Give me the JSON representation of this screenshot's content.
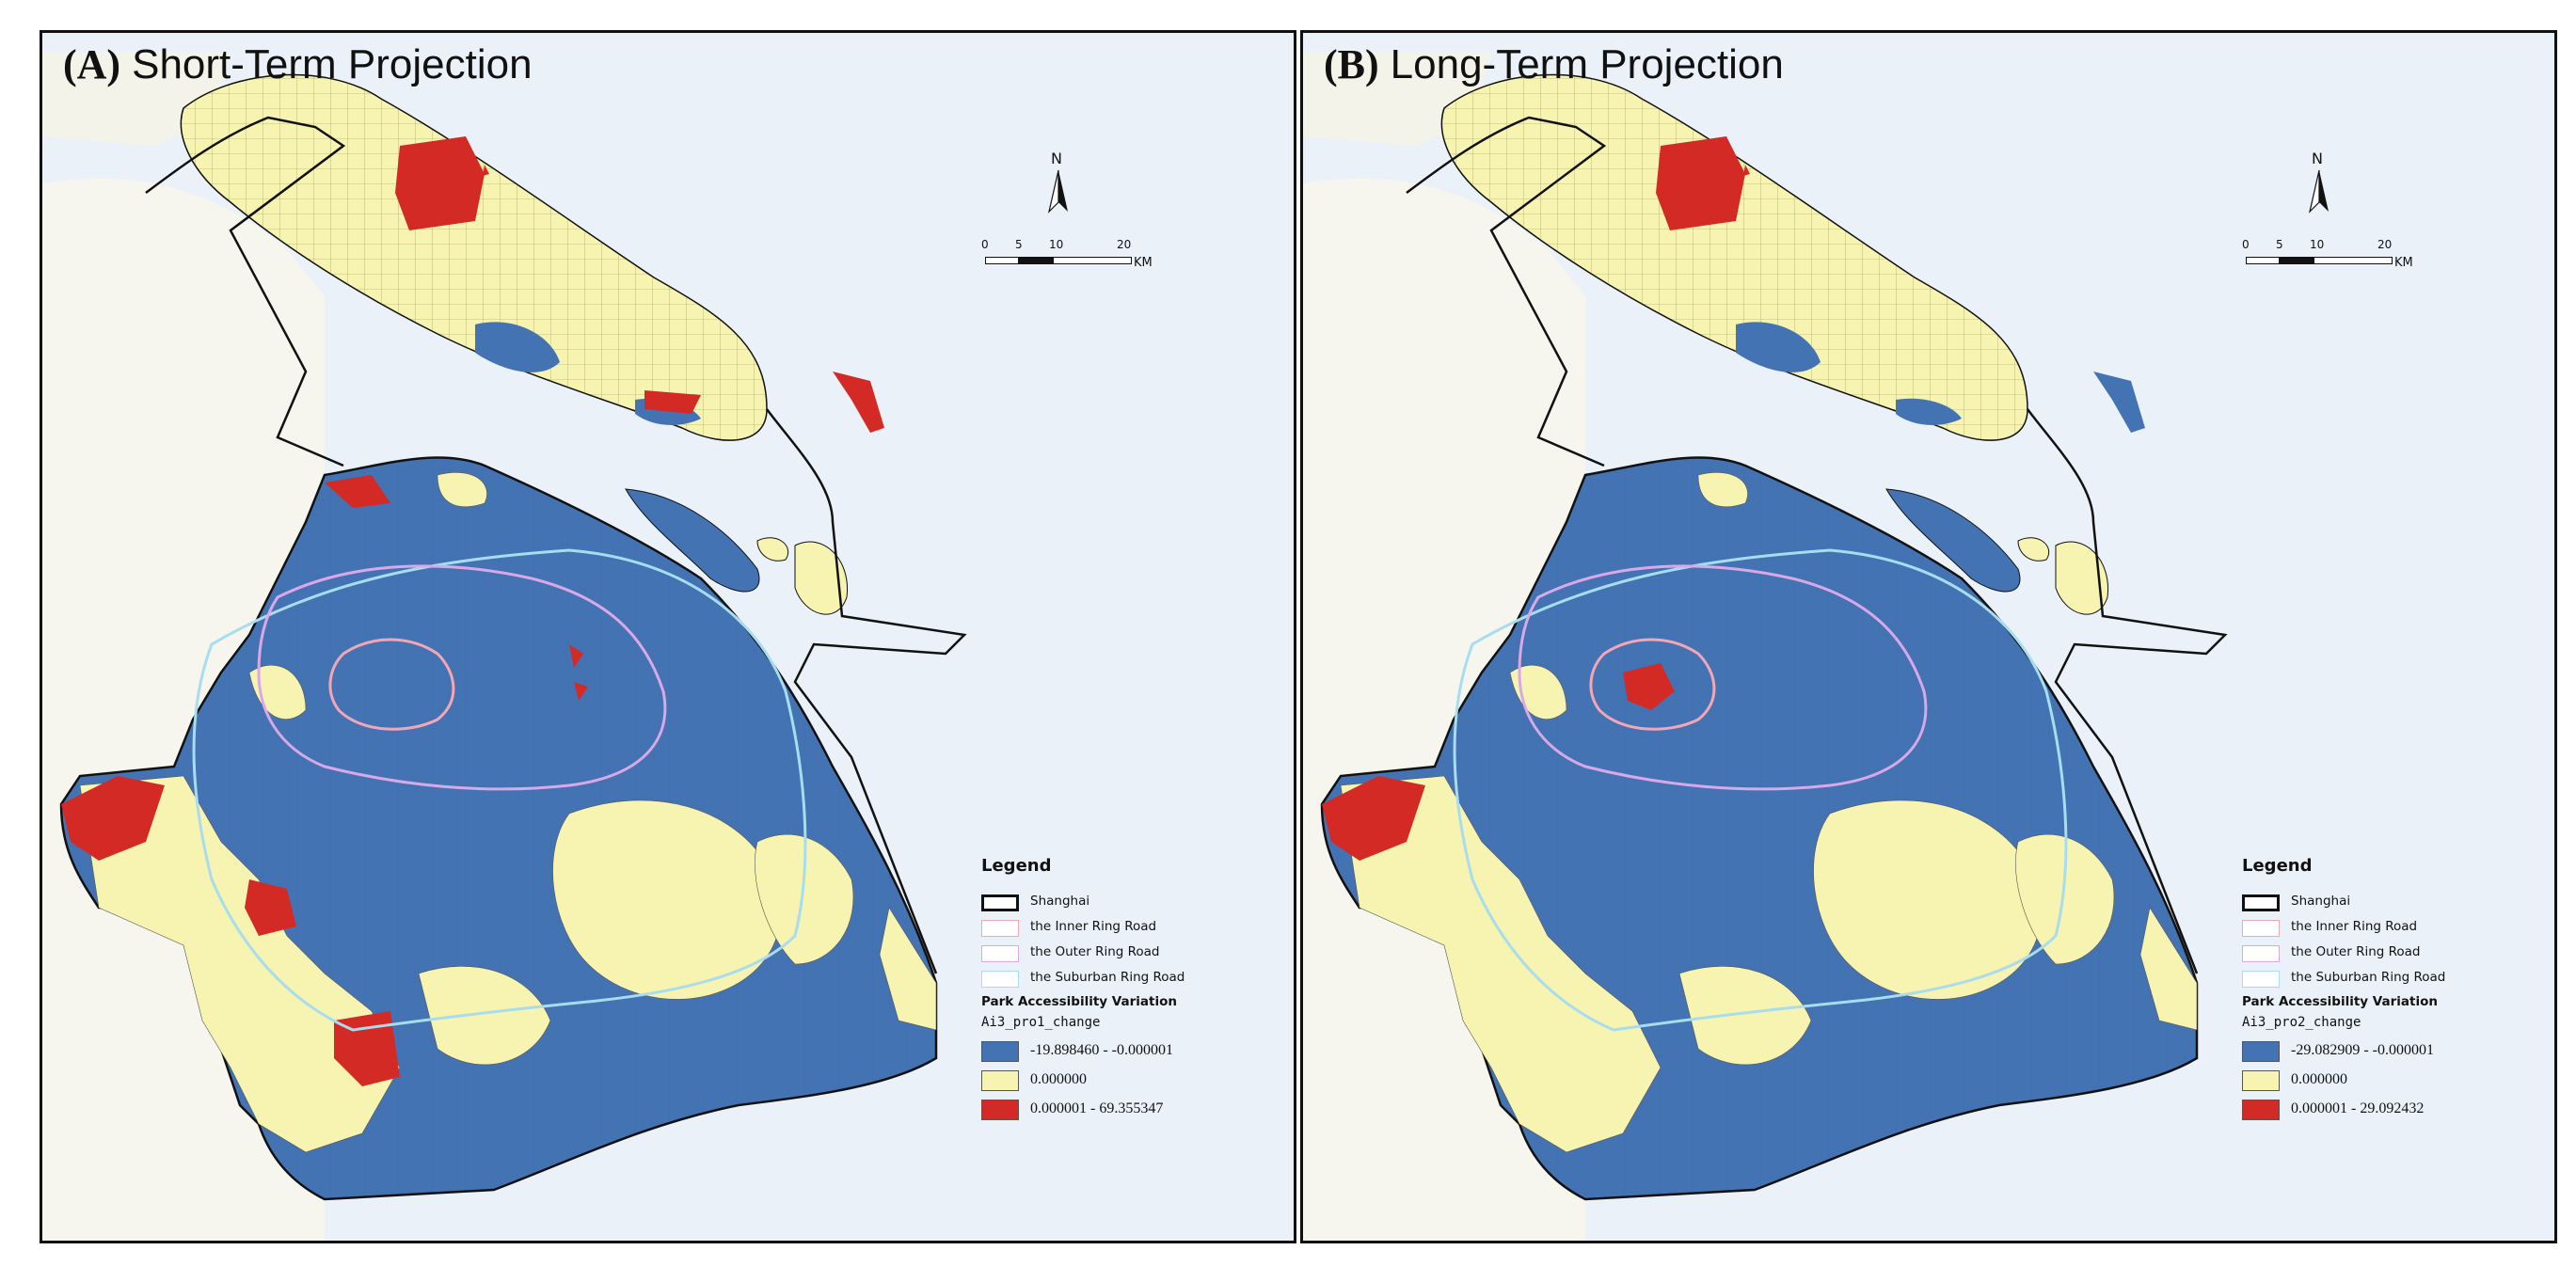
{
  "panels": [
    {
      "id": "A",
      "tag": "(A)",
      "title": "Short-Term Projection",
      "north": "N",
      "scale": {
        "ticks": [
          "0",
          "5",
          "10",
          "20"
        ],
        "unit": "KM"
      },
      "legend": {
        "title": "Legend",
        "items": [
          "Shanghai",
          "the Inner Ring Road",
          "the Outer Ring Road",
          "the Suburban Ring Road"
        ],
        "subtitle": "Park Accessibility Variation",
        "field": "Ai3_pro1_change",
        "classes": [
          {
            "label": "-19.898460 - -0.000001",
            "color": "#4473b4"
          },
          {
            "label": "0.000000",
            "color": "#f7f3b0"
          },
          {
            "label": "0.000001 - 69.355347",
            "color": "#d42a25"
          }
        ]
      }
    },
    {
      "id": "B",
      "tag": "(B)",
      "title": "Long-Term Projection",
      "north": "N",
      "scale": {
        "ticks": [
          "0",
          "5",
          "10",
          "20"
        ],
        "unit": "KM"
      },
      "legend": {
        "title": "Legend",
        "items": [
          "Shanghai",
          "the Inner Ring Road",
          "the Outer Ring Road",
          "the Suburban Ring Road"
        ],
        "subtitle": "Park Accessibility Variation",
        "field": "Ai3_pro2_change",
        "classes": [
          {
            "label": "-29.082909 - -0.000001",
            "color": "#4473b4"
          },
          {
            "label": "0.000000",
            "color": "#f7f3b0"
          },
          {
            "label": "0.000001 - 29.092432",
            "color": "#d42a25"
          }
        ]
      }
    }
  ],
  "colors": {
    "water": "#eaf1f8",
    "land_background": "#f6f5ee",
    "boundary": "#111111",
    "inner_ring": "#f4a6b5",
    "outer_ring": "#d9a8e6",
    "suburban_ring": "#a8ddf0"
  }
}
